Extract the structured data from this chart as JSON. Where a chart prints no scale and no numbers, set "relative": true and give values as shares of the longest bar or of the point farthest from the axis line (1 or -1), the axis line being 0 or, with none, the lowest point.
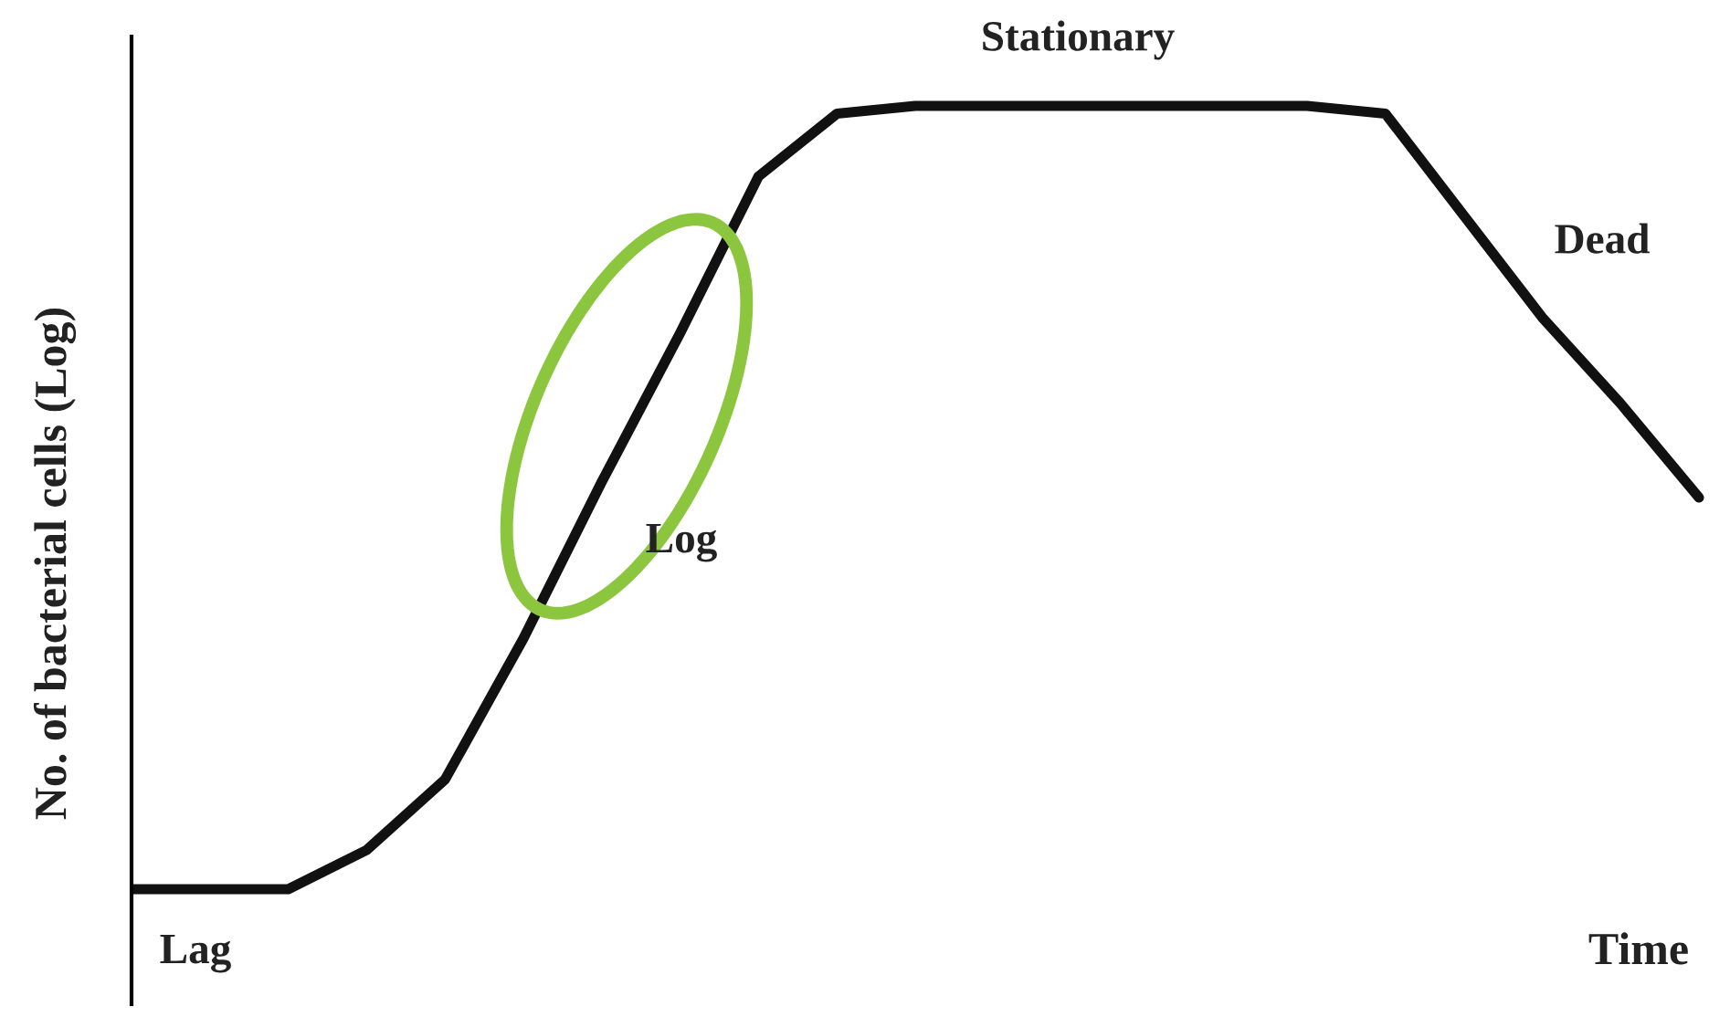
{
  "chart_data": {
    "type": "line",
    "relative": true,
    "xlabel": "Time",
    "ylabel": "No. of bacterial cells (Log)",
    "categories": [
      null,
      null,
      null,
      null,
      null,
      null,
      null,
      null,
      null,
      null,
      null,
      null,
      null,
      null,
      null,
      null,
      null,
      null,
      null,
      null,
      null
    ],
    "series": [
      {
        "color": "#111111",
        "values": [
          0,
          0,
          0,
          0.05,
          0.14,
          0.32,
          0.52,
          0.71,
          0.91,
          0.99,
          1,
          1,
          1,
          1,
          1,
          1,
          0.99,
          0.86,
          0.73,
          0.62,
          0.5
        ]
      }
    ],
    "annotations": [
      "Lag",
      "Log",
      "Stationary",
      "Dead"
    ],
    "legend": false,
    "marker": "none",
    "line_style": "solid"
  }
}
